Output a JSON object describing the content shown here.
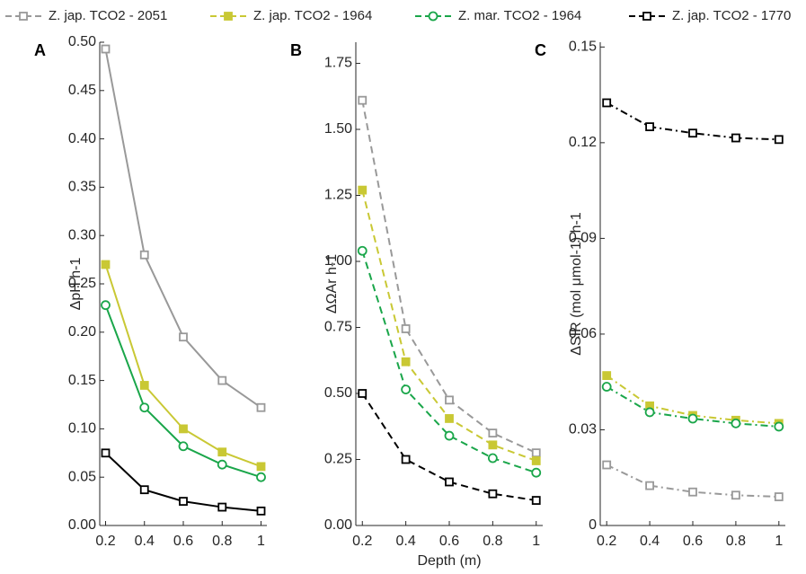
{
  "chart_data": [
    {
      "type": "line",
      "panel": "A",
      "ylabel": "ΔpH h-1",
      "line_style": "solid",
      "x": [
        0.2,
        0.4,
        0.6,
        0.8,
        1
      ],
      "xlim": [
        0.17,
        1.03
      ],
      "xticks": [
        0.2,
        0.4,
        0.6,
        0.8,
        1
      ],
      "ylim": [
        0,
        0.5
      ],
      "yticks": [
        {
          "value": 0,
          "label": "0.00"
        },
        {
          "value": 0.05,
          "label": "0.05"
        },
        {
          "value": 0.1,
          "label": "0.10"
        },
        {
          "value": 0.15,
          "label": "0.15"
        },
        {
          "value": 0.2,
          "label": "0.20"
        },
        {
          "value": 0.25,
          "label": "0.25"
        },
        {
          "value": 0.3,
          "label": "0.30"
        },
        {
          "value": 0.35,
          "label": "0.35"
        },
        {
          "value": 0.4,
          "label": "0.40"
        },
        {
          "value": 0.45,
          "label": "0.45"
        },
        {
          "value": 0.5,
          "label": "0.50"
        }
      ],
      "series": [
        {
          "name": "Z. jap. TCO2 - 2051",
          "color": "#999999",
          "marker": "square",
          "values": [
            0.493,
            0.28,
            0.195,
            0.15,
            0.122
          ]
        },
        {
          "name": "Z. jap. TCO2 - 1964",
          "color": "#c9c834",
          "marker": "square-filled",
          "values": [
            0.27,
            0.145,
            0.1,
            0.076,
            0.061
          ]
        },
        {
          "name": "Z. mar. TCO2 - 1964",
          "color": "#1aa64a",
          "marker": "circle",
          "values": [
            0.228,
            0.122,
            0.082,
            0.063,
            0.05
          ]
        },
        {
          "name": "Z. jap. TCO2 - 1770",
          "color": "#000000",
          "marker": "square",
          "values": [
            0.075,
            0.037,
            0.025,
            0.019,
            0.015
          ]
        }
      ]
    },
    {
      "type": "line",
      "panel": "B",
      "ylabel": "ΔΩAr h-1",
      "xlabel": "Depth (m)",
      "line_style": "dashed",
      "x": [
        0.2,
        0.4,
        0.6,
        0.8,
        1
      ],
      "xlim": [
        0.17,
        1.03
      ],
      "xticks": [
        0.2,
        0.4,
        0.6,
        0.8,
        1
      ],
      "ylim": [
        0,
        1.83
      ],
      "yticks": [
        {
          "value": 0,
          "label": "0.00"
        },
        0.25,
        {
          "value": 0.5,
          "label": "0.50"
        },
        0.75,
        {
          "value": 1,
          "label": "1.00"
        },
        1.25,
        {
          "value": 1.5,
          "label": "1.50"
        },
        1.75
      ],
      "series": [
        {
          "color": "#999999",
          "marker": "square",
          "values": [
            1.61,
            0.745,
            0.475,
            0.35,
            0.275
          ]
        },
        {
          "color": "#c9c834",
          "marker": "square-filled",
          "values": [
            1.27,
            0.62,
            0.405,
            0.305,
            0.245
          ]
        },
        {
          "color": "#1aa64a",
          "marker": "circle",
          "values": [
            1.04,
            0.515,
            0.34,
            0.255,
            0.2
          ]
        },
        {
          "color": "#000000",
          "marker": "square",
          "values": [
            0.5,
            0.25,
            0.165,
            0.12,
            0.095
          ]
        }
      ]
    },
    {
      "type": "line",
      "panel": "C",
      "ylabel": "ΔSIR (mol μmol-1) h-1",
      "line_style": "dashdot",
      "x": [
        0.2,
        0.4,
        0.6,
        0.8,
        1
      ],
      "xlim": [
        0.17,
        1.03
      ],
      "xticks": [
        0.2,
        0.4,
        0.6,
        0.8,
        1
      ],
      "ylim": [
        0,
        0.1515
      ],
      "yticks": [
        0,
        0.03,
        0.06,
        0.09,
        0.12,
        0.15
      ],
      "series": [
        {
          "color": "#999999",
          "marker": "square",
          "values": [
            0.019,
            0.0125,
            0.0105,
            0.0095,
            0.009
          ]
        },
        {
          "color": "#c9c834",
          "marker": "square-filled",
          "values": [
            0.047,
            0.0375,
            0.0345,
            0.033,
            0.032
          ]
        },
        {
          "color": "#1aa64a",
          "marker": "circle",
          "values": [
            0.0435,
            0.0355,
            0.0335,
            0.032,
            0.031
          ]
        },
        {
          "color": "#000000",
          "marker": "square",
          "values": [
            0.1325,
            0.125,
            0.123,
            0.1215,
            0.121
          ]
        }
      ]
    }
  ]
}
